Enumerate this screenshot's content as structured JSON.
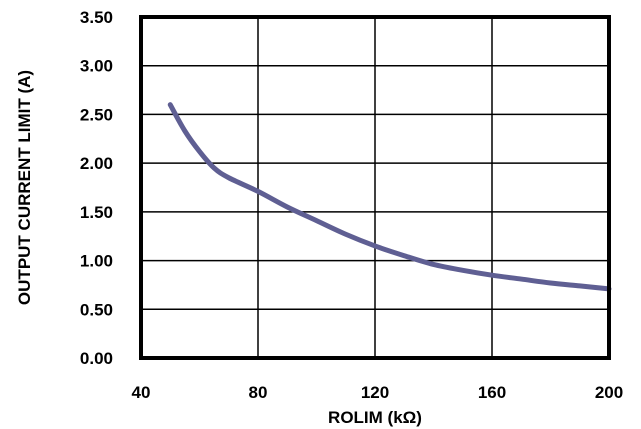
{
  "chart_data": {
    "type": "line",
    "title": "",
    "xlabel": "ROLIM (kΩ)",
    "ylabel": "OUTPUT CURRENT LIMIT (A)",
    "xlim": [
      40,
      200
    ],
    "ylim": [
      0,
      3.5
    ],
    "xticks": [
      "40",
      "80",
      "120",
      "160",
      "200"
    ],
    "yticks": [
      "0.00",
      "0.50",
      "1.00",
      "1.50",
      "2.00",
      "2.50",
      "3.00",
      "3.50"
    ],
    "grid": true,
    "legend": "none",
    "series": [
      {
        "color": "#5f5f93",
        "x": [
          50,
          55,
          60,
          65,
          70,
          80,
          90,
          100,
          110,
          120,
          130,
          140,
          150,
          160,
          170,
          180,
          190,
          200
        ],
        "y": [
          2.6,
          2.33,
          2.12,
          1.95,
          1.85,
          1.71,
          1.55,
          1.41,
          1.27,
          1.15,
          1.05,
          0.96,
          0.9,
          0.85,
          0.81,
          0.77,
          0.74,
          0.71
        ]
      }
    ]
  }
}
